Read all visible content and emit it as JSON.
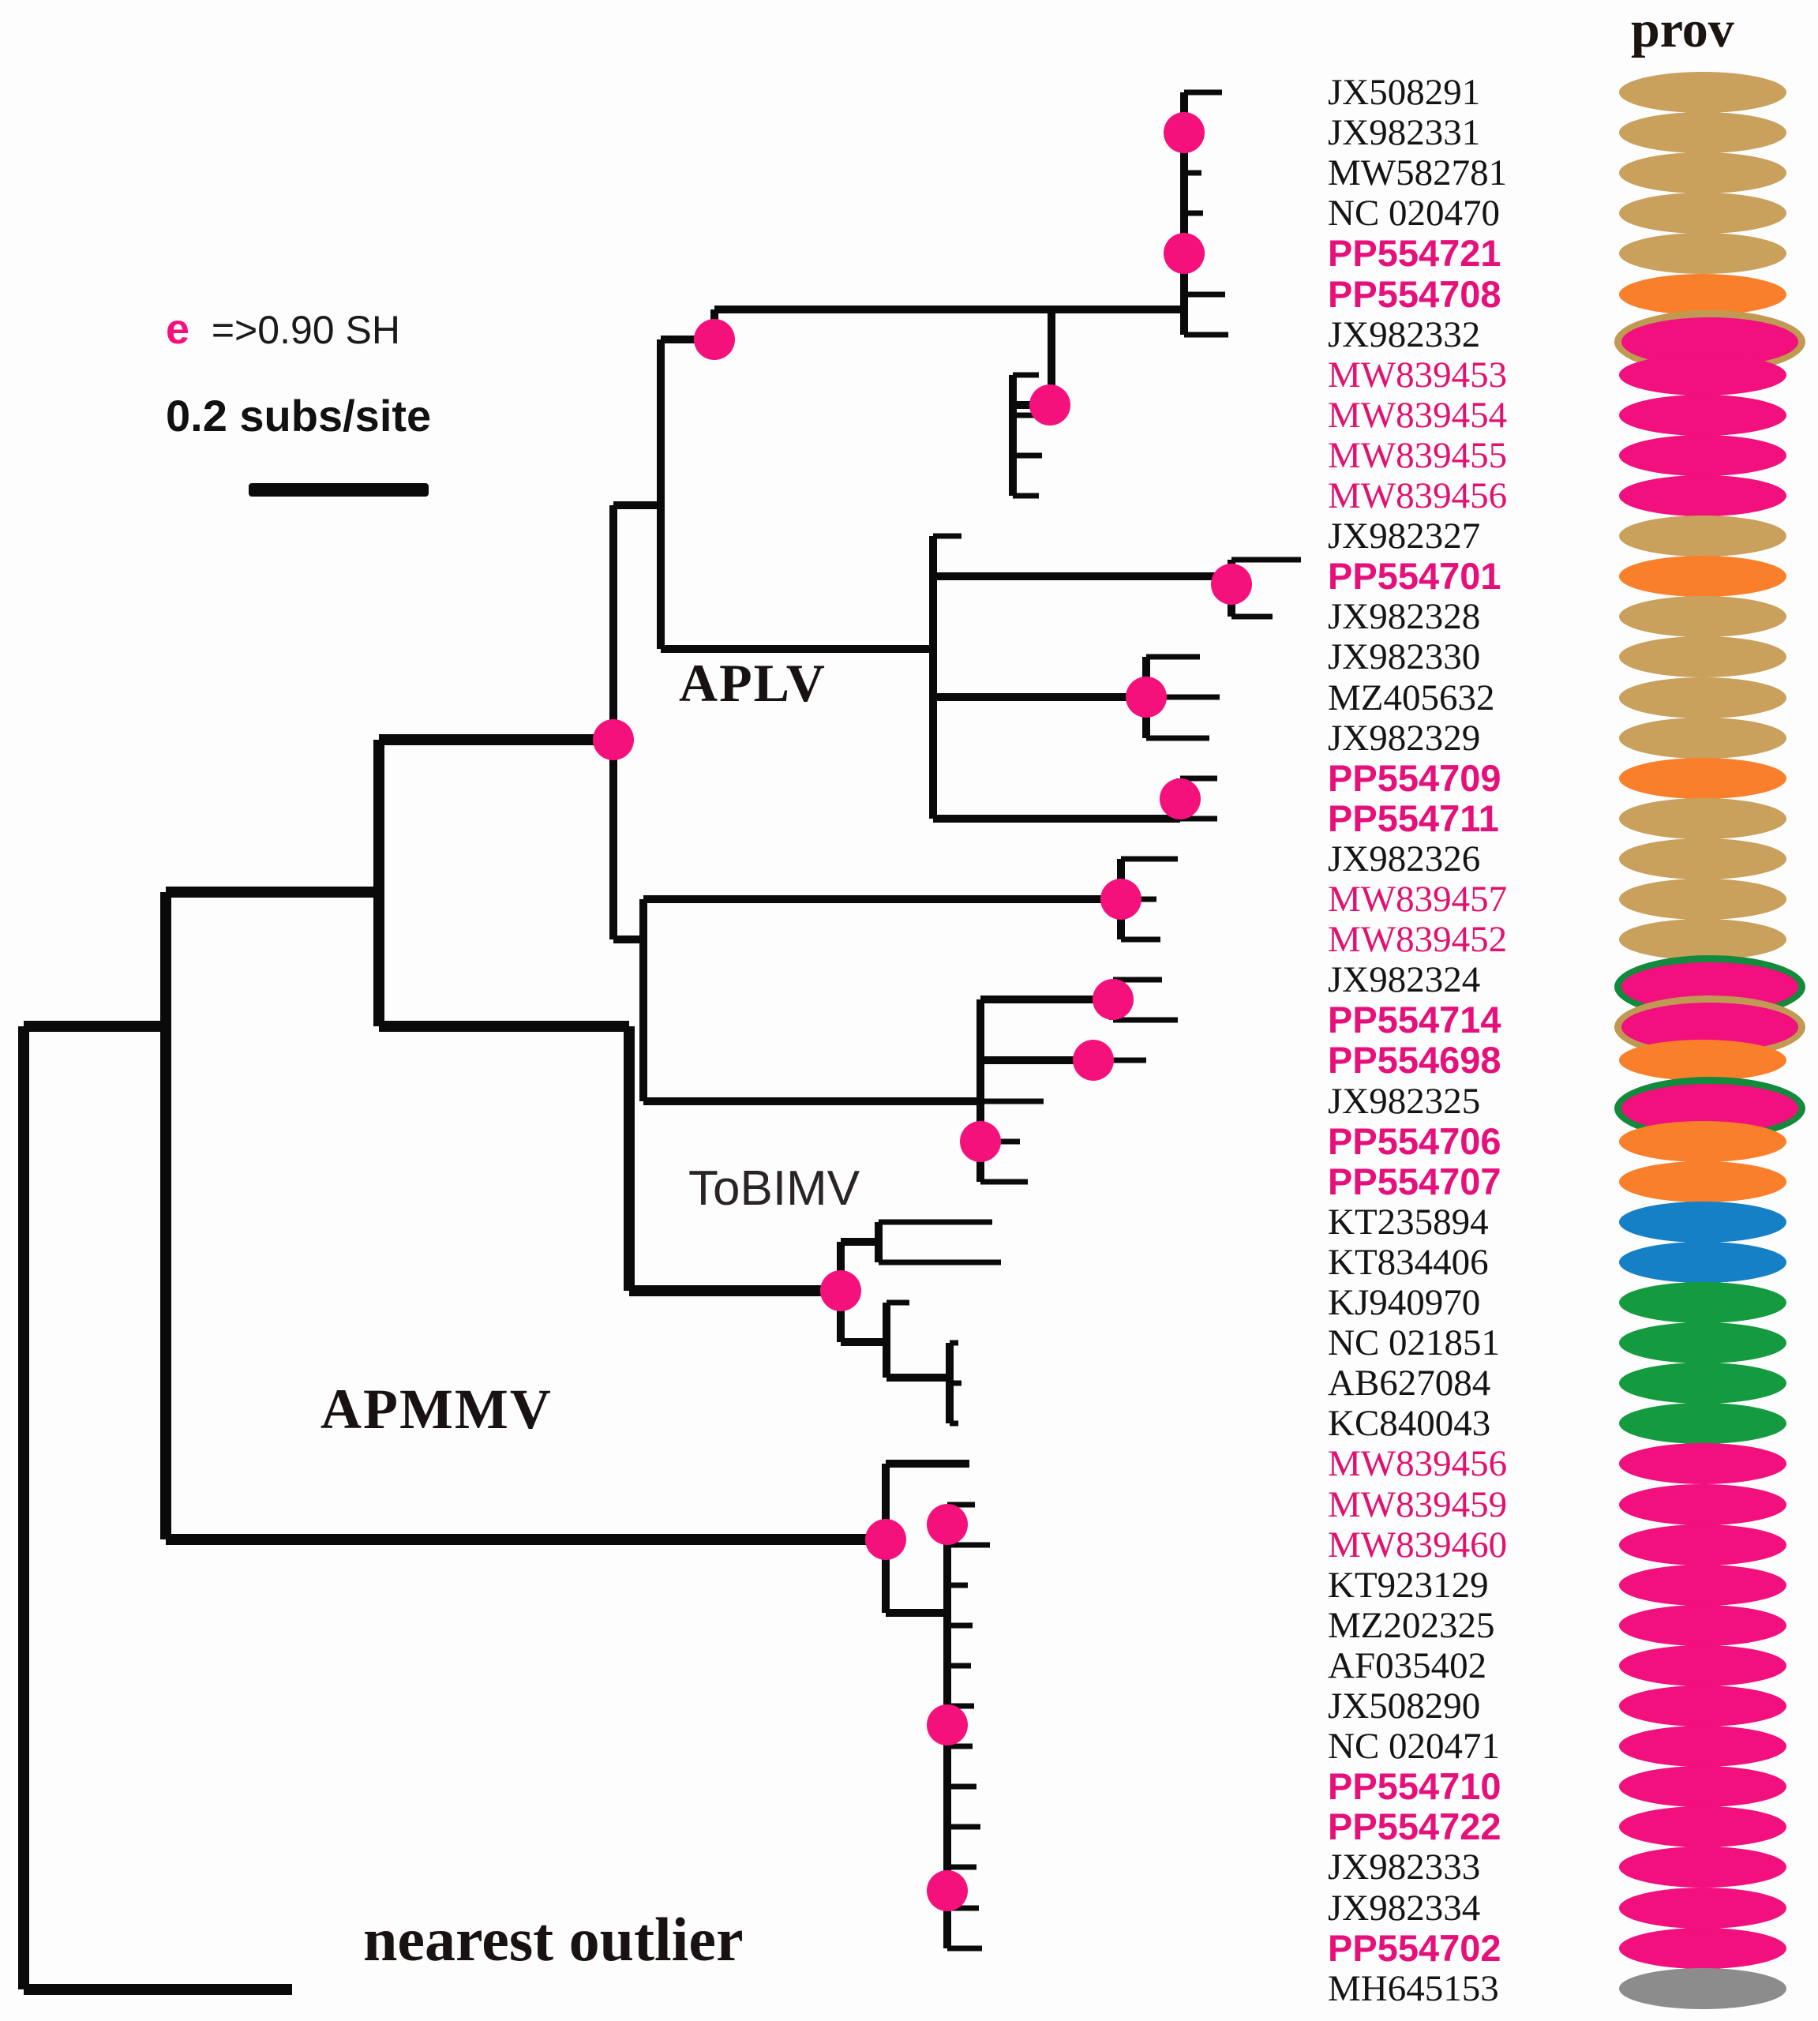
{
  "header": {
    "prov_column_title": "prov"
  },
  "legend": {
    "node_symbol": "e",
    "node_support_text": "=>0.90 SH",
    "scale_text": "0.2 subs/site"
  },
  "clade_labels": {
    "aplv": "APLV",
    "tobimv": "ToBIMV",
    "apmmv": "APMMV",
    "outlier": "nearest outlier"
  },
  "palette": {
    "tan": "#C9A05C",
    "orange": "#FA7F2B",
    "pink": "#F20F7E",
    "green": "#149B3F",
    "blue": "#1580C5",
    "gray": "#8C8C8C",
    "tan_border": "#C09A52",
    "green_border": "#128A3C",
    "label_pink": "#E3106E",
    "label_pink_bold": "#E6107B",
    "node_dot": "#F5117C",
    "branch": "#0A0A0A"
  },
  "taxa": [
    {
      "label": "JX508291",
      "label_style": "black",
      "ellipse": "tan"
    },
    {
      "label": "JX982331",
      "label_style": "black",
      "ellipse": "tan"
    },
    {
      "label": "MW582781",
      "label_style": "black",
      "ellipse": "tan"
    },
    {
      "label": "NC 020470",
      "label_style": "black",
      "ellipse": "tan"
    },
    {
      "label": "PP554721",
      "label_style": "pink-bold",
      "ellipse": "tan"
    },
    {
      "label": "PP554708",
      "label_style": "pink-bold",
      "ellipse": "orange"
    },
    {
      "label": "JX982332",
      "label_style": "black",
      "ellipse": "pink",
      "ellipse_border": "tan_border"
    },
    {
      "label": "MW839453",
      "label_style": "pink",
      "ellipse": "pink"
    },
    {
      "label": "MW839454",
      "label_style": "pink",
      "ellipse": "pink"
    },
    {
      "label": "MW839455",
      "label_style": "pink",
      "ellipse": "pink"
    },
    {
      "label": "MW839456",
      "label_style": "pink",
      "ellipse": "pink"
    },
    {
      "label": "JX982327",
      "label_style": "black",
      "ellipse": "tan"
    },
    {
      "label": "PP554701",
      "label_style": "pink-bold",
      "ellipse": "orange"
    },
    {
      "label": "JX982328",
      "label_style": "black",
      "ellipse": "tan"
    },
    {
      "label": "JX982330",
      "label_style": "black",
      "ellipse": "tan"
    },
    {
      "label": "MZ405632",
      "label_style": "black",
      "ellipse": "tan"
    },
    {
      "label": "JX982329",
      "label_style": "black",
      "ellipse": "tan"
    },
    {
      "label": "PP554709",
      "label_style": "pink-bold",
      "ellipse": "orange"
    },
    {
      "label": "PP554711",
      "label_style": "pink-bold",
      "ellipse": "tan"
    },
    {
      "label": "JX982326",
      "label_style": "black",
      "ellipse": "tan"
    },
    {
      "label": "MW839457",
      "label_style": "pink",
      "ellipse": "tan"
    },
    {
      "label": "MW839452",
      "label_style": "pink",
      "ellipse": "tan"
    },
    {
      "label": "JX982324",
      "label_style": "black",
      "ellipse": "pink",
      "ellipse_border": "green_border"
    },
    {
      "label": "PP554714",
      "label_style": "pink-bold",
      "ellipse": "pink",
      "ellipse_border": "tan_border"
    },
    {
      "label": "PP554698",
      "label_style": "pink-bold",
      "ellipse": "orange"
    },
    {
      "label": "JX982325",
      "label_style": "black",
      "ellipse": "pink",
      "ellipse_border": "green_border"
    },
    {
      "label": "PP554706",
      "label_style": "pink-bold",
      "ellipse": "orange"
    },
    {
      "label": "PP554707",
      "label_style": "pink-bold",
      "ellipse": "orange"
    },
    {
      "label": "KT235894",
      "label_style": "black",
      "ellipse": "blue"
    },
    {
      "label": "KT834406",
      "label_style": "black",
      "ellipse": "blue"
    },
    {
      "label": "KJ940970",
      "label_style": "black",
      "ellipse": "green"
    },
    {
      "label": "NC 021851",
      "label_style": "black",
      "ellipse": "green"
    },
    {
      "label": "AB627084",
      "label_style": "black",
      "ellipse": "green"
    },
    {
      "label": "KC840043",
      "label_style": "black",
      "ellipse": "green"
    },
    {
      "label": "MW839456",
      "label_style": "pink",
      "ellipse": "pink"
    },
    {
      "label": "MW839459",
      "label_style": "pink",
      "ellipse": "pink"
    },
    {
      "label": "MW839460",
      "label_style": "pink",
      "ellipse": "pink"
    },
    {
      "label": "KT923129",
      "label_style": "black",
      "ellipse": "pink"
    },
    {
      "label": "MZ202325",
      "label_style": "black",
      "ellipse": "pink"
    },
    {
      "label": "AF035402",
      "label_style": "black",
      "ellipse": "pink"
    },
    {
      "label": "JX508290",
      "label_style": "black",
      "ellipse": "pink"
    },
    {
      "label": "NC 020471",
      "label_style": "black",
      "ellipse": "pink"
    },
    {
      "label": "PP554710",
      "label_style": "pink-bold",
      "ellipse": "pink"
    },
    {
      "label": "PP554722",
      "label_style": "pink-bold",
      "ellipse": "pink"
    },
    {
      "label": "JX982333",
      "label_style": "black",
      "ellipse": "pink"
    },
    {
      "label": "JX982334",
      "label_style": "black",
      "ellipse": "pink"
    },
    {
      "label": "PP554702",
      "label_style": "pink-bold",
      "ellipse": "pink"
    },
    {
      "label": "MH645153",
      "label_style": "black",
      "ellipse": "gray"
    }
  ]
}
